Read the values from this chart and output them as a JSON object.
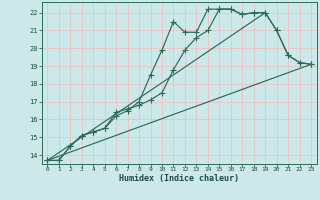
{
  "xlabel": "Humidex (Indice chaleur)",
  "bg_color": "#cde8e8",
  "grid_color": "#e8c8c8",
  "line_color": "#2a6b5a",
  "xlim": [
    -0.5,
    23.5
  ],
  "ylim": [
    13.5,
    22.6
  ],
  "xticks": [
    0,
    1,
    2,
    3,
    4,
    5,
    6,
    7,
    8,
    9,
    10,
    11,
    12,
    13,
    14,
    15,
    16,
    17,
    18,
    19,
    20,
    21,
    22,
    23
  ],
  "yticks": [
    14,
    15,
    16,
    17,
    18,
    19,
    20,
    21,
    22
  ],
  "line1_x": [
    0,
    1,
    2,
    3,
    4,
    5,
    6,
    7,
    8,
    9,
    10,
    11,
    12,
    13,
    14,
    15,
    16,
    17,
    18,
    19,
    20,
    21,
    22,
    23
  ],
  "line1_y": [
    13.7,
    13.7,
    14.5,
    15.1,
    15.3,
    15.5,
    16.4,
    16.6,
    16.8,
    17.1,
    17.5,
    18.8,
    19.9,
    20.6,
    21.0,
    22.2,
    22.2,
    21.9,
    22.0,
    22.0,
    21.0,
    19.6,
    19.2,
    19.1
  ],
  "line2_x": [
    0,
    1,
    2,
    3,
    4,
    5,
    6,
    7,
    8,
    9,
    10,
    11,
    12,
    13,
    14,
    15,
    16,
    17,
    18,
    19,
    20,
    21,
    22,
    23
  ],
  "line2_y": [
    13.7,
    13.7,
    14.5,
    15.1,
    15.3,
    15.5,
    16.2,
    16.5,
    17.0,
    18.5,
    19.9,
    21.5,
    20.9,
    20.9,
    22.2,
    22.2,
    22.2,
    21.9,
    22.0,
    22.0,
    21.0,
    19.6,
    19.2,
    19.1
  ],
  "line3_x": [
    0,
    23
  ],
  "line3_y": [
    13.7,
    19.1
  ],
  "line4_x": [
    0,
    19
  ],
  "line4_y": [
    13.7,
    22.0
  ]
}
